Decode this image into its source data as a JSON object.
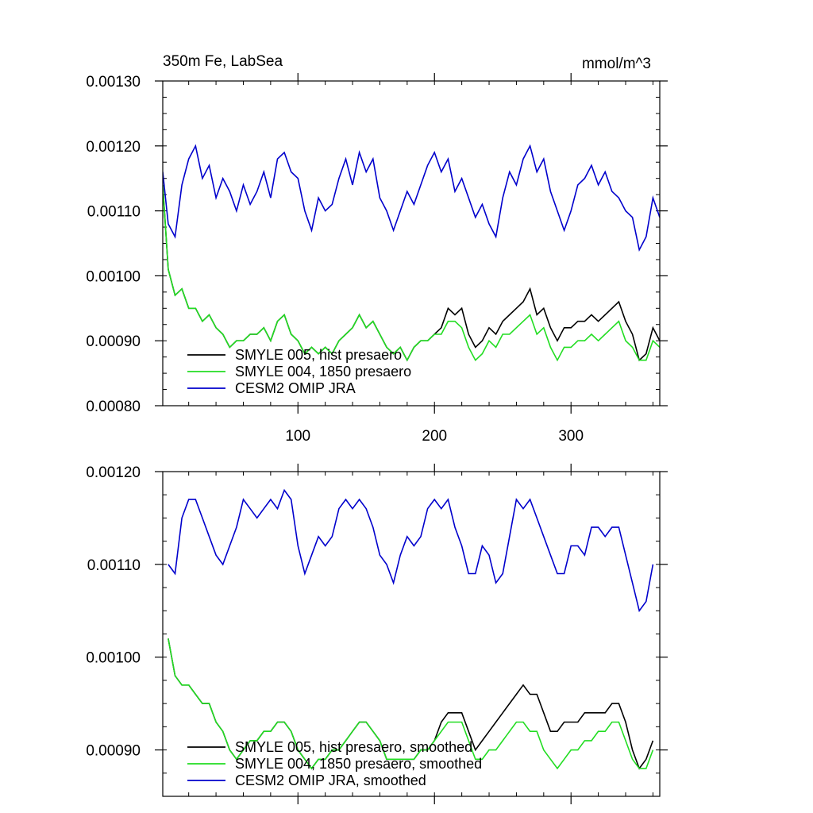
{
  "chart_data": [
    {
      "type": "line",
      "title": "350m Fe, LabSea",
      "units": "mmol/m^3",
      "xlim": [
        1,
        365
      ],
      "ylim": [
        0.0008,
        0.0013
      ],
      "xticks": [
        100,
        200,
        300
      ],
      "xtick_labels": [
        "100",
        "200",
        "300"
      ],
      "yticks": [
        0.0008,
        0.0009,
        0.001,
        0.0011,
        0.0012,
        0.0013
      ],
      "ytick_labels": [
        "0.00080",
        "0.00090",
        "0.00100",
        "0.00110",
        "0.00120",
        "0.00130"
      ],
      "legend": "bottom-left",
      "series": [
        {
          "name": "SMYLE 005, hist presaero",
          "color": "#000000",
          "x": [
            1,
            5,
            10,
            15,
            20,
            25,
            30,
            35,
            40,
            45,
            50,
            55,
            60,
            65,
            70,
            75,
            80,
            85,
            90,
            95,
            100,
            105,
            110,
            115,
            120,
            125,
            130,
            135,
            140,
            145,
            150,
            155,
            160,
            165,
            170,
            175,
            180,
            185,
            190,
            195,
            200,
            205,
            210,
            215,
            220,
            225,
            230,
            235,
            240,
            245,
            250,
            255,
            260,
            265,
            270,
            275,
            280,
            285,
            290,
            295,
            300,
            305,
            310,
            315,
            320,
            325,
            330,
            335,
            340,
            345,
            350,
            355,
            360,
            365
          ],
          "y": [
            0.00114,
            0.00101,
            0.00097,
            0.00098,
            0.00095,
            0.00095,
            0.00093,
            0.00094,
            0.00092,
            0.00091,
            0.00089,
            0.0009,
            0.0009,
            0.00091,
            0.00091,
            0.00092,
            0.0009,
            0.00093,
            0.00094,
            0.00091,
            0.0009,
            0.00088,
            0.00089,
            0.00088,
            0.00089,
            0.00088,
            0.0009,
            0.00091,
            0.00092,
            0.00094,
            0.00092,
            0.00093,
            0.00091,
            0.00089,
            0.00088,
            0.00089,
            0.00087,
            0.00089,
            0.0009,
            0.0009,
            0.00091,
            0.00092,
            0.00095,
            0.00094,
            0.00095,
            0.00091,
            0.00089,
            0.0009,
            0.00092,
            0.00091,
            0.00093,
            0.00094,
            0.00095,
            0.00096,
            0.00098,
            0.00094,
            0.00095,
            0.00092,
            0.0009,
            0.00092,
            0.00092,
            0.00093,
            0.00093,
            0.00094,
            0.00093,
            0.00094,
            0.00095,
            0.00096,
            0.00093,
            0.00091,
            0.00087,
            0.00088,
            0.00092,
            0.0009
          ]
        },
        {
          "name": "SMYLE 004, 1850 presaero",
          "color": "#22dd22",
          "x": [
            1,
            5,
            10,
            15,
            20,
            25,
            30,
            35,
            40,
            45,
            50,
            55,
            60,
            65,
            70,
            75,
            80,
            85,
            90,
            95,
            100,
            105,
            110,
            115,
            120,
            125,
            130,
            135,
            140,
            145,
            150,
            155,
            160,
            165,
            170,
            175,
            180,
            185,
            190,
            195,
            200,
            205,
            210,
            215,
            220,
            225,
            230,
            235,
            240,
            245,
            250,
            255,
            260,
            265,
            270,
            275,
            280,
            285,
            290,
            295,
            300,
            305,
            310,
            315,
            320,
            325,
            330,
            335,
            340,
            345,
            350,
            355,
            360,
            365
          ],
          "y": [
            0.00114,
            0.00101,
            0.00097,
            0.00098,
            0.00095,
            0.00095,
            0.00093,
            0.00094,
            0.00092,
            0.00091,
            0.00089,
            0.0009,
            0.0009,
            0.00091,
            0.00091,
            0.00092,
            0.0009,
            0.00093,
            0.00094,
            0.00091,
            0.0009,
            0.00088,
            0.00089,
            0.00088,
            0.00089,
            0.00088,
            0.0009,
            0.00091,
            0.00092,
            0.00094,
            0.00092,
            0.00093,
            0.00091,
            0.00089,
            0.00088,
            0.00089,
            0.00087,
            0.00089,
            0.0009,
            0.0009,
            0.00091,
            0.00091,
            0.00093,
            0.00093,
            0.00092,
            0.00089,
            0.00087,
            0.00088,
            0.0009,
            0.00089,
            0.00091,
            0.00091,
            0.00092,
            0.00093,
            0.00094,
            0.00091,
            0.00092,
            0.00089,
            0.00087,
            0.00089,
            0.00089,
            0.0009,
            0.0009,
            0.00091,
            0.0009,
            0.00091,
            0.00092,
            0.00093,
            0.0009,
            0.00089,
            0.00087,
            0.00087,
            0.0009,
            0.00089
          ]
        },
        {
          "name": "CESM2 OMIP JRA",
          "color": "#0000cc",
          "x": [
            1,
            5,
            10,
            15,
            20,
            25,
            30,
            35,
            40,
            45,
            50,
            55,
            60,
            65,
            70,
            75,
            80,
            85,
            90,
            95,
            100,
            105,
            110,
            115,
            120,
            125,
            130,
            135,
            140,
            145,
            150,
            155,
            160,
            165,
            170,
            175,
            180,
            185,
            190,
            195,
            200,
            205,
            210,
            215,
            220,
            225,
            230,
            235,
            240,
            245,
            250,
            255,
            260,
            265,
            270,
            275,
            280,
            285,
            290,
            295,
            300,
            305,
            310,
            315,
            320,
            325,
            330,
            335,
            340,
            345,
            350,
            355,
            360,
            365
          ],
          "y": [
            0.00116,
            0.00108,
            0.00106,
            0.00114,
            0.00118,
            0.0012,
            0.00115,
            0.00117,
            0.00112,
            0.00115,
            0.00113,
            0.0011,
            0.00114,
            0.00111,
            0.00113,
            0.00116,
            0.00112,
            0.00118,
            0.00119,
            0.00116,
            0.00115,
            0.0011,
            0.00107,
            0.00112,
            0.0011,
            0.00111,
            0.00115,
            0.00118,
            0.00114,
            0.00119,
            0.00116,
            0.00118,
            0.00112,
            0.0011,
            0.00107,
            0.0011,
            0.00113,
            0.00111,
            0.00114,
            0.00117,
            0.00119,
            0.00116,
            0.00118,
            0.00113,
            0.00115,
            0.00112,
            0.00109,
            0.00111,
            0.00108,
            0.00106,
            0.00112,
            0.00116,
            0.00114,
            0.00118,
            0.0012,
            0.00116,
            0.00118,
            0.00113,
            0.0011,
            0.00107,
            0.0011,
            0.00114,
            0.00115,
            0.00117,
            0.00114,
            0.00116,
            0.00113,
            0.00112,
            0.0011,
            0.00109,
            0.00104,
            0.00106,
            0.00112,
            0.00109
          ]
        }
      ]
    },
    {
      "type": "line",
      "xlim": [
        1,
        365
      ],
      "ylim": [
        0.00085,
        0.0012
      ],
      "xticks": [
        100,
        200,
        300
      ],
      "yticks": [
        0.0009,
        0.001,
        0.0011,
        0.0012
      ],
      "ytick_labels": [
        "0.00090",
        "0.00100",
        "0.00110",
        "0.00120"
      ],
      "legend": "bottom-left",
      "series": [
        {
          "name": "SMYLE 005, hist presaero, smoothed",
          "color": "#000000",
          "x": [
            5,
            10,
            15,
            20,
            25,
            30,
            35,
            40,
            45,
            50,
            55,
            60,
            65,
            70,
            75,
            80,
            85,
            90,
            95,
            100,
            105,
            110,
            115,
            120,
            125,
            130,
            135,
            140,
            145,
            150,
            155,
            160,
            165,
            170,
            175,
            180,
            185,
            190,
            195,
            200,
            205,
            210,
            215,
            220,
            225,
            230,
            235,
            240,
            245,
            250,
            255,
            260,
            265,
            270,
            275,
            280,
            285,
            290,
            295,
            300,
            305,
            310,
            315,
            320,
            325,
            330,
            335,
            340,
            345,
            350,
            355,
            360
          ],
          "y": [
            0.00102,
            0.00098,
            0.00097,
            0.00097,
            0.00096,
            0.00095,
            0.00095,
            0.00093,
            0.00092,
            0.0009,
            0.00089,
            0.0009,
            0.00091,
            0.00091,
            0.00092,
            0.00092,
            0.00093,
            0.00093,
            0.00092,
            0.0009,
            0.00089,
            0.00088,
            0.00089,
            0.00089,
            0.0009,
            0.0009,
            0.00091,
            0.00092,
            0.00093,
            0.00093,
            0.00092,
            0.00091,
            0.00089,
            0.00089,
            0.00089,
            0.00089,
            0.00089,
            0.0009,
            0.0009,
            0.00091,
            0.00093,
            0.00094,
            0.00094,
            0.00094,
            0.00092,
            0.0009,
            0.00091,
            0.00092,
            0.00093,
            0.00094,
            0.00095,
            0.00096,
            0.00097,
            0.00096,
            0.00096,
            0.00094,
            0.00092,
            0.00092,
            0.00093,
            0.00093,
            0.00093,
            0.00094,
            0.00094,
            0.00094,
            0.00094,
            0.00095,
            0.00095,
            0.00093,
            0.0009,
            0.00088,
            0.00089,
            0.00091
          ]
        },
        {
          "name": "SMYLE 004, 1850 presaero, smoothed",
          "color": "#22dd22",
          "x": [
            5,
            10,
            15,
            20,
            25,
            30,
            35,
            40,
            45,
            50,
            55,
            60,
            65,
            70,
            75,
            80,
            85,
            90,
            95,
            100,
            105,
            110,
            115,
            120,
            125,
            130,
            135,
            140,
            145,
            150,
            155,
            160,
            165,
            170,
            175,
            180,
            185,
            190,
            195,
            200,
            205,
            210,
            215,
            220,
            225,
            230,
            235,
            240,
            245,
            250,
            255,
            260,
            265,
            270,
            275,
            280,
            285,
            290,
            295,
            300,
            305,
            310,
            315,
            320,
            325,
            330,
            335,
            340,
            345,
            350,
            355,
            360
          ],
          "y": [
            0.00102,
            0.00098,
            0.00097,
            0.00097,
            0.00096,
            0.00095,
            0.00095,
            0.00093,
            0.00092,
            0.0009,
            0.00089,
            0.0009,
            0.00091,
            0.00091,
            0.00092,
            0.00092,
            0.00093,
            0.00093,
            0.00092,
            0.0009,
            0.00089,
            0.00088,
            0.00089,
            0.00089,
            0.0009,
            0.0009,
            0.00091,
            0.00092,
            0.00093,
            0.00093,
            0.00092,
            0.00091,
            0.00089,
            0.00089,
            0.00089,
            0.00089,
            0.00089,
            0.0009,
            0.0009,
            0.00091,
            0.00092,
            0.00093,
            0.00093,
            0.00093,
            0.00091,
            0.00089,
            0.00089,
            0.0009,
            0.0009,
            0.00091,
            0.00092,
            0.00093,
            0.00093,
            0.00092,
            0.00092,
            0.0009,
            0.00089,
            0.00088,
            0.00089,
            0.0009,
            0.0009,
            0.00091,
            0.00091,
            0.00092,
            0.00092,
            0.00093,
            0.00093,
            0.00091,
            0.00089,
            0.00088,
            0.00088,
            0.0009
          ]
        },
        {
          "name": "CESM2 OMIP JRA, smoothed",
          "color": "#0000cc",
          "x": [
            5,
            10,
            15,
            20,
            25,
            30,
            35,
            40,
            45,
            50,
            55,
            60,
            65,
            70,
            75,
            80,
            85,
            90,
            95,
            100,
            105,
            110,
            115,
            120,
            125,
            130,
            135,
            140,
            145,
            150,
            155,
            160,
            165,
            170,
            175,
            180,
            185,
            190,
            195,
            200,
            205,
            210,
            215,
            220,
            225,
            230,
            235,
            240,
            245,
            250,
            255,
            260,
            265,
            270,
            275,
            280,
            285,
            290,
            295,
            300,
            305,
            310,
            315,
            320,
            325,
            330,
            335,
            340,
            345,
            350,
            355,
            360
          ],
          "y": [
            0.0011,
            0.00109,
            0.00115,
            0.00117,
            0.00117,
            0.00115,
            0.00113,
            0.00111,
            0.0011,
            0.00112,
            0.00114,
            0.00117,
            0.00116,
            0.00115,
            0.00116,
            0.00117,
            0.00116,
            0.00118,
            0.00117,
            0.00112,
            0.00109,
            0.00111,
            0.00113,
            0.00112,
            0.00113,
            0.00116,
            0.00117,
            0.00116,
            0.00117,
            0.00116,
            0.00114,
            0.00111,
            0.0011,
            0.00108,
            0.00111,
            0.00113,
            0.00112,
            0.00113,
            0.00116,
            0.00117,
            0.00116,
            0.00117,
            0.00114,
            0.00112,
            0.00109,
            0.00109,
            0.00112,
            0.00111,
            0.00108,
            0.00109,
            0.00113,
            0.00117,
            0.00116,
            0.00117,
            0.00115,
            0.00113,
            0.00111,
            0.00109,
            0.00109,
            0.00112,
            0.00112,
            0.00111,
            0.00114,
            0.00114,
            0.00113,
            0.00114,
            0.00114,
            0.00111,
            0.00108,
            0.00105,
            0.00106,
            0.0011
          ]
        }
      ]
    }
  ]
}
